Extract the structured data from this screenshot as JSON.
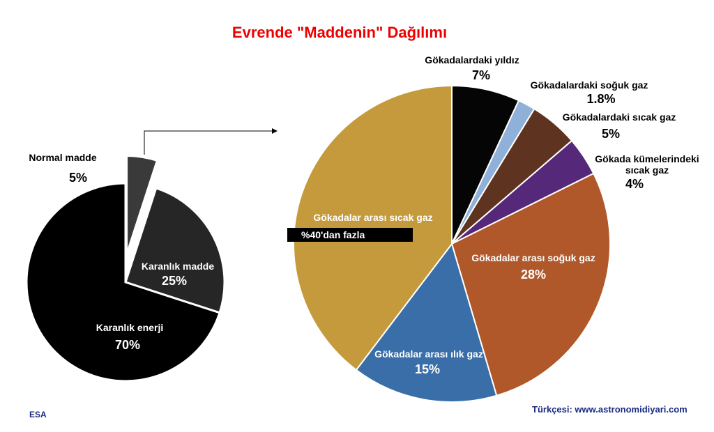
{
  "title": "Evrende \"Maddenin\" Dağılımı",
  "source": "ESA",
  "credit": "Türkçesi: www.astronomidiyari.com",
  "chart_data": [
    {
      "type": "pie",
      "categories": [
        "Normal madde",
        "Karanlık madde",
        "Karanlık enerji"
      ],
      "values": [
        5,
        25,
        70
      ],
      "value_labels": [
        "5%",
        "25%",
        "70%"
      ],
      "colors": [
        "#3a3a3a",
        "#262626",
        "#000000"
      ]
    },
    {
      "type": "pie",
      "categories": [
        "Gökadalardaki yıldız",
        "Gökadalardaki soğuk gaz",
        "Gökadalardaki sıcak gaz",
        "Gökada kümelerindeki sıcak gaz",
        "Gökadalar arası soğuk gaz",
        "Gökadalar arası ılık gaz",
        "Gökadalar arası sıcak gaz"
      ],
      "values": [
        7,
        1.8,
        5,
        4,
        28,
        15,
        40
      ],
      "value_labels": [
        "7%",
        "1.8%",
        "5%",
        "4%",
        "28%",
        "15%",
        "%40'dan fazla"
      ],
      "colors": [
        "#050505",
        "#8fb0d8",
        "#5e3420",
        "#55287a",
        "#b0582a",
        "#3a6ea8",
        "#c49a3c"
      ]
    }
  ]
}
